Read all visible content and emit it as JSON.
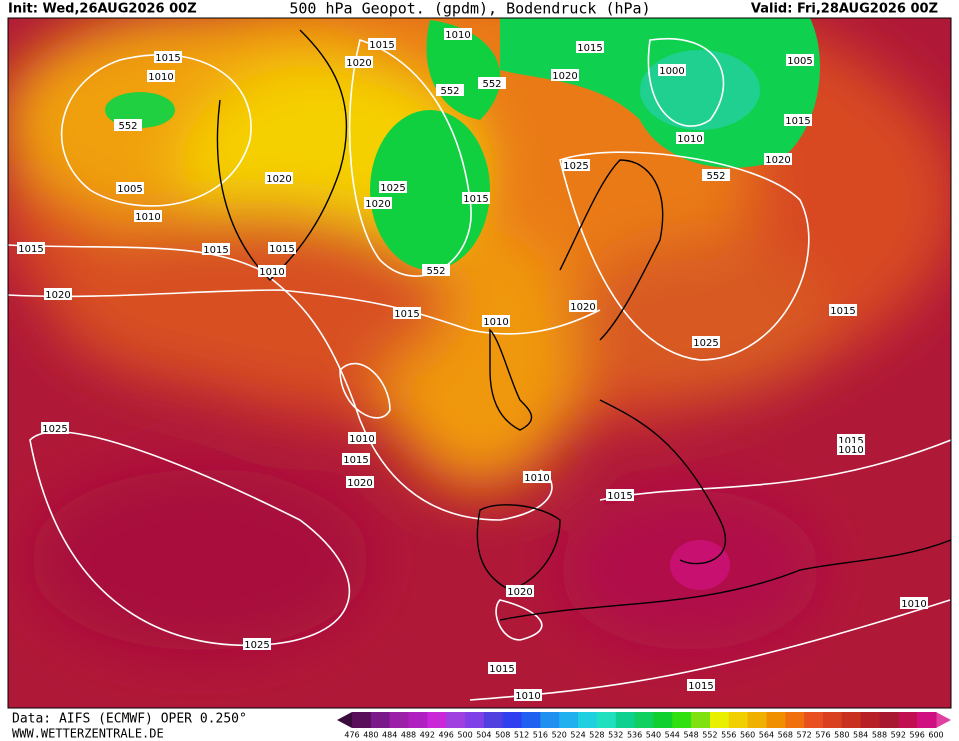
{
  "header": {
    "init": "Init: Wed,26AUG2026 00Z",
    "title": "500 hPa Geopot. (gpdm), Bodendruck (hPa)",
    "valid": "Valid: Fri,28AUG2026 00Z"
  },
  "footer": {
    "source": "Data: AIFS (ECMWF) OPER 0.250°",
    "site": "WWW.WETTERZENTRALE.DE"
  },
  "map": {
    "contour_labels": [
      1015,
      1010,
      1015,
      1015,
      1010,
      1020,
      552,
      552,
      552,
      1020,
      1000,
      1005,
      1015,
      1010,
      1020,
      552,
      1025,
      1020,
      1005,
      1025,
      1020,
      1015,
      1010,
      1015,
      1015,
      1015,
      1010,
      552,
      1020,
      1015,
      1010,
      1020,
      1015,
      1025,
      1025,
      1010,
      1015,
      1015,
      1010,
      1020,
      1010,
      1015,
      1020,
      1010,
      1025,
      1015,
      1015,
      1010
    ]
  },
  "colorbar": {
    "labels": [
      476,
      480,
      484,
      488,
      492,
      496,
      500,
      504,
      508,
      512,
      516,
      520,
      524,
      528,
      532,
      536,
      540,
      544,
      548,
      552,
      556,
      560,
      564,
      568,
      572,
      576,
      580,
      584,
      588,
      592,
      596,
      600
    ],
    "colors": [
      "#5a0f5a",
      "#7a1a8a",
      "#9c1fa8",
      "#b020c0",
      "#c828d8",
      "#a040e0",
      "#8040e8",
      "#5040e0",
      "#3040f0",
      "#2060f0",
      "#2090f0",
      "#20b0f0",
      "#20d0e0",
      "#20e0c0",
      "#10d090",
      "#10d060",
      "#10d030",
      "#30e010",
      "#80e010",
      "#e8f000",
      "#f0d000",
      "#f0b000",
      "#f09000",
      "#f07010",
      "#e85020",
      "#d84020",
      "#c83020",
      "#b82028",
      "#a81830",
      "#c01050",
      "#d01080"
    ]
  }
}
